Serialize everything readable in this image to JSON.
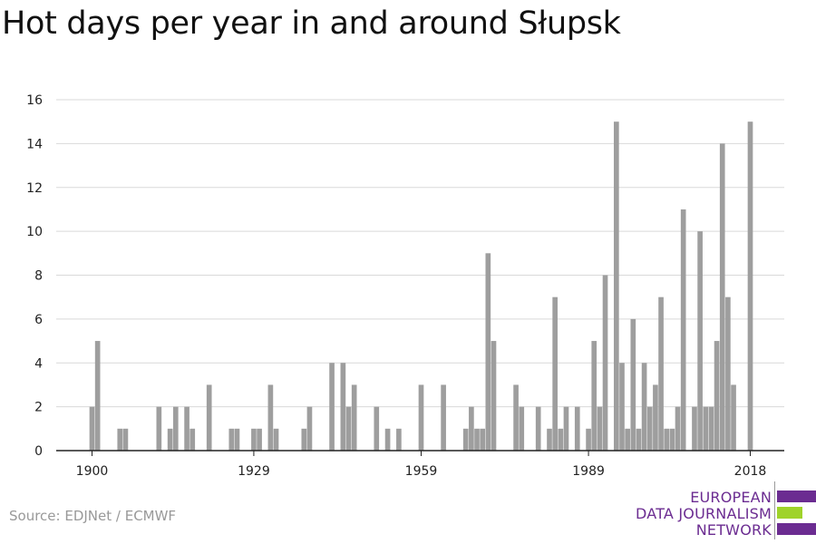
{
  "title": "Hot days per year in and around Słupsk",
  "source": "Source: EDJNet / ECMWF",
  "logo": {
    "lines": [
      "EUROPEAN",
      "DATA JOURNALISM",
      "NETWORK"
    ],
    "text_color": "#6b2c91",
    "bar_colors": [
      "#6b2c91",
      "#9fd32a",
      "#6b2c91"
    ]
  },
  "colors": {
    "bar": "#9e9e9e",
    "grid": "#d9d9d9",
    "axis": "#222222"
  },
  "chart_data": {
    "type": "bar",
    "title": "Hot days per year in and around Słupsk",
    "xlabel": "",
    "ylabel": "",
    "ylim": [
      0,
      16
    ],
    "xlim": [
      1900,
      2018
    ],
    "yticks": [
      0,
      2,
      4,
      6,
      8,
      10,
      12,
      14,
      16
    ],
    "xticks": [
      1900,
      1929,
      1959,
      1989,
      2018
    ],
    "grid": true,
    "series": [
      {
        "x": [
          1900,
          1901,
          1905,
          1906,
          1912,
          1914,
          1915,
          1917,
          1918,
          1921,
          1925,
          1926,
          1929,
          1930,
          1932,
          1933,
          1938,
          1939,
          1943,
          1945,
          1946,
          1947,
          1951,
          1953,
          1955,
          1959,
          1963,
          1967,
          1968,
          1969,
          1970,
          1971,
          1972,
          1973,
          1976,
          1977,
          1980,
          1982,
          1983,
          1984,
          1985,
          1987,
          1989,
          1990,
          1991,
          1992,
          1993,
          1994,
          1995,
          1996,
          1997,
          1998,
          1999,
          2000,
          2001,
          2002,
          2003,
          2004,
          2005,
          2006,
          2008,
          2009,
          2010,
          2011,
          2012,
          2013,
          2014,
          2015,
          2018
        ],
        "values": [
          2,
          5,
          1,
          1,
          2,
          1,
          2,
          2,
          1,
          3,
          1,
          1,
          1,
          1,
          3,
          1,
          1,
          2,
          4,
          4,
          2,
          3,
          2,
          1,
          1,
          3,
          3,
          1,
          2,
          1,
          1,
          9,
          5,
          0,
          3,
          2,
          2,
          1,
          7,
          1,
          2,
          2,
          1,
          5,
          2,
          8,
          0,
          15,
          4,
          1,
          6,
          1,
          4,
          2,
          3,
          7,
          1,
          1,
          2,
          11,
          2,
          10,
          2,
          2,
          5,
          14,
          7,
          3,
          15
        ]
      }
    ]
  }
}
